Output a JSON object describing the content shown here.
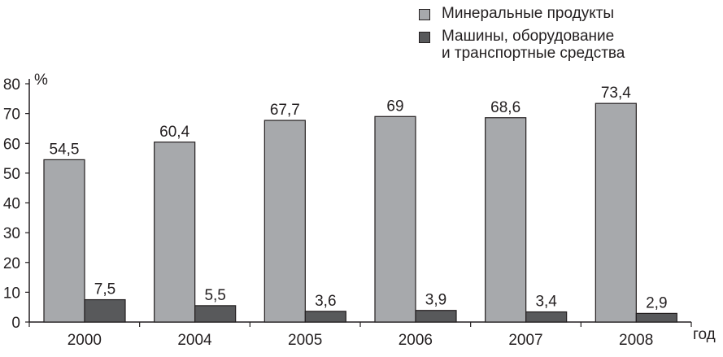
{
  "chart_data": {
    "type": "bar",
    "categories": [
      "2000",
      "2004",
      "2005",
      "2006",
      "2007",
      "2008"
    ],
    "series": [
      {
        "name": "Минеральные продукты",
        "values": [
          54.5,
          60.4,
          67.7,
          69,
          68.6,
          73.4
        ],
        "labels": [
          "54,5",
          "60,4",
          "67,7",
          "69",
          "68,6",
          "73,4"
        ],
        "color": "#a7a9ac"
      },
      {
        "name": "Машины, оборудование\nи транспортные средства",
        "values": [
          7.5,
          5.5,
          3.6,
          3.9,
          3.4,
          2.9
        ],
        "labels": [
          "7,5",
          "5,5",
          "3,6",
          "3,9",
          "3,4",
          "2,9"
        ],
        "color": "#58595b"
      }
    ],
    "ylabel": "%",
    "xlabel": "год",
    "ylim": [
      0,
      80
    ],
    "yticks": [
      "0",
      "10",
      "20",
      "30",
      "40",
      "50",
      "60",
      "70",
      "80"
    ],
    "grid": false,
    "legend_position": "top-right"
  }
}
